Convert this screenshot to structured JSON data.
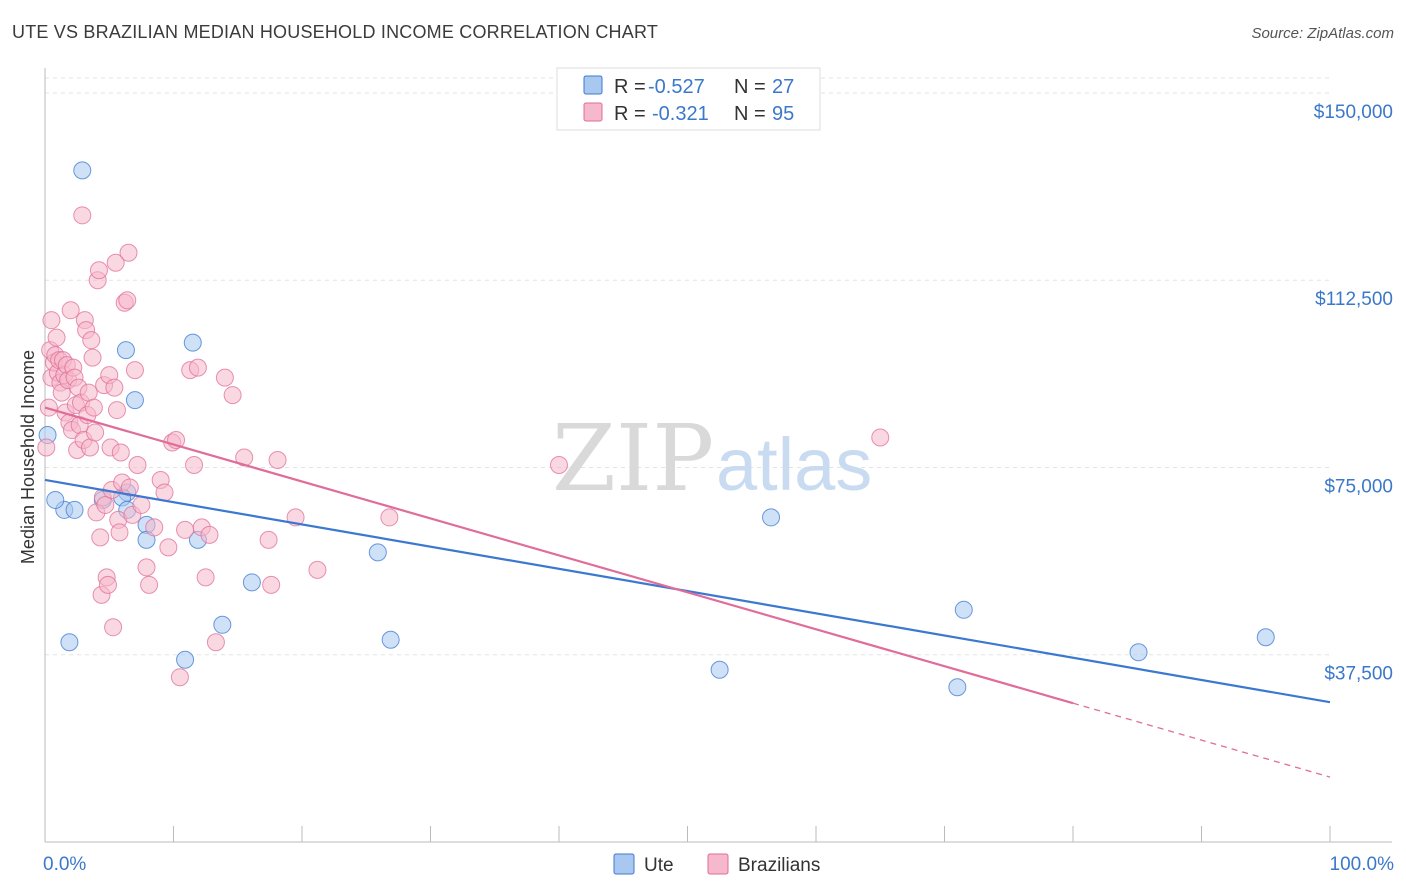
{
  "title": "UTE VS BRAZILIAN MEDIAN HOUSEHOLD INCOME CORRELATION CHART",
  "source": "Source: ZipAtlas.com",
  "watermark": {
    "zip": "ZIP",
    "atlas": "atlas"
  },
  "legend_top": [
    {
      "r_label": "R = ",
      "r_value": "-0.527",
      "n_label": "N = ",
      "n_value": "27",
      "color": "#a8c8f0"
    },
    {
      "r_label": "R = ",
      "r_value": "-0.321",
      "n_label": "N = ",
      "n_value": "95",
      "color": "#f6b8cb"
    }
  ],
  "legend_bottom": [
    {
      "label": "Ute",
      "color": "#a8c8f0"
    },
    {
      "label": "Brazilians",
      "color": "#f6b8cb"
    }
  ],
  "chart_data": {
    "type": "scatter",
    "title": "UTE VS BRAZILIAN MEDIAN HOUSEHOLD INCOME CORRELATION CHART",
    "xlabel": "",
    "ylabel": "Median Household Income",
    "xlim": [
      0,
      100
    ],
    "ylim": [
      0,
      153000
    ],
    "x_tick_labels": [
      "0.0%",
      "100.0%"
    ],
    "y_ticks": [
      {
        "value": 37500,
        "label": "$37,500"
      },
      {
        "value": 75000,
        "label": "$75,000"
      },
      {
        "value": 112500,
        "label": "$112,500"
      },
      {
        "value": 150000,
        "label": "$150,000"
      }
    ],
    "series": [
      {
        "name": "Ute",
        "color": "#3b78d0",
        "fill": "#a8c8f0",
        "r": -0.527,
        "n": 27,
        "trend": {
          "x0": 0,
          "y0": 72500,
          "x1": 100,
          "y1": 28000,
          "solid_until": 100
        },
        "points": [
          [
            0.2,
            81500
          ],
          [
            1.5,
            66500
          ],
          [
            2.3,
            66500
          ],
          [
            2.9,
            134500
          ],
          [
            1.9,
            40000
          ],
          [
            6.3,
            98500
          ],
          [
            6.4,
            70000
          ],
          [
            7.0,
            88500
          ],
          [
            6.0,
            69000
          ],
          [
            6.4,
            66500
          ],
          [
            7.9,
            63500
          ],
          [
            7.9,
            60500
          ],
          [
            11.5,
            100000
          ],
          [
            11.9,
            60500
          ],
          [
            10.9,
            36500
          ],
          [
            13.8,
            43500
          ],
          [
            16.1,
            52000
          ],
          [
            25.9,
            58000
          ],
          [
            26.9,
            40500
          ],
          [
            52.5,
            34500
          ],
          [
            56.5,
            65000
          ],
          [
            71.0,
            31000
          ],
          [
            71.5,
            46500
          ],
          [
            85.1,
            38000
          ],
          [
            95.0,
            41000
          ],
          [
            0.8,
            68500
          ],
          [
            4.5,
            68500
          ]
        ]
      },
      {
        "name": "Brazilians",
        "color": "#e06d99",
        "fill": "#f6b8cb",
        "r": -0.321,
        "n": 95,
        "trend": {
          "x0": 0,
          "y0": 87000,
          "x1": 100,
          "y1": 13000,
          "solid_until": 80
        },
        "points": [
          [
            0.1,
            79000
          ],
          [
            0.3,
            87000
          ],
          [
            0.4,
            98500
          ],
          [
            0.5,
            93000
          ],
          [
            0.5,
            104500
          ],
          [
            0.7,
            96000
          ],
          [
            0.8,
            97500
          ],
          [
            0.9,
            101000
          ],
          [
            1.0,
            94000
          ],
          [
            1.1,
            96500
          ],
          [
            1.2,
            92000
          ],
          [
            1.3,
            90000
          ],
          [
            1.4,
            96500
          ],
          [
            1.5,
            93500
          ],
          [
            1.6,
            86000
          ],
          [
            1.7,
            95500
          ],
          [
            1.8,
            92500
          ],
          [
            1.9,
            84000
          ],
          [
            2.0,
            106500
          ],
          [
            2.1,
            82500
          ],
          [
            2.2,
            95000
          ],
          [
            2.3,
            93000
          ],
          [
            2.4,
            87500
          ],
          [
            2.5,
            78500
          ],
          [
            2.6,
            91000
          ],
          [
            2.7,
            83500
          ],
          [
            2.8,
            88000
          ],
          [
            2.9,
            125500
          ],
          [
            3.0,
            80500
          ],
          [
            3.1,
            104500
          ],
          [
            3.2,
            102500
          ],
          [
            3.3,
            85500
          ],
          [
            3.4,
            90000
          ],
          [
            3.5,
            79000
          ],
          [
            3.6,
            100500
          ],
          [
            3.7,
            97000
          ],
          [
            3.8,
            87000
          ],
          [
            3.9,
            82000
          ],
          [
            4.0,
            66000
          ],
          [
            4.1,
            112500
          ],
          [
            4.2,
            114500
          ],
          [
            4.3,
            61000
          ],
          [
            4.4,
            49500
          ],
          [
            4.5,
            69000
          ],
          [
            4.6,
            91500
          ],
          [
            4.7,
            67500
          ],
          [
            4.8,
            53000
          ],
          [
            4.9,
            51500
          ],
          [
            5.0,
            93500
          ],
          [
            5.1,
            79000
          ],
          [
            5.2,
            70500
          ],
          [
            5.3,
            43000
          ],
          [
            5.4,
            91000
          ],
          [
            5.5,
            116000
          ],
          [
            5.6,
            86500
          ],
          [
            5.7,
            64500
          ],
          [
            5.8,
            62000
          ],
          [
            5.9,
            78000
          ],
          [
            6.0,
            72000
          ],
          [
            6.2,
            108000
          ],
          [
            6.4,
            108500
          ],
          [
            6.5,
            118000
          ],
          [
            6.6,
            71000
          ],
          [
            6.8,
            65500
          ],
          [
            7.0,
            94500
          ],
          [
            7.2,
            75500
          ],
          [
            7.5,
            67500
          ],
          [
            7.9,
            55000
          ],
          [
            8.1,
            51500
          ],
          [
            8.5,
            63000
          ],
          [
            9.0,
            72500
          ],
          [
            9.3,
            70000
          ],
          [
            9.6,
            59000
          ],
          [
            9.9,
            80000
          ],
          [
            10.2,
            80500
          ],
          [
            10.5,
            33000
          ],
          [
            10.9,
            62500
          ],
          [
            11.3,
            94500
          ],
          [
            11.6,
            75500
          ],
          [
            11.9,
            95000
          ],
          [
            12.2,
            63000
          ],
          [
            12.5,
            53000
          ],
          [
            12.8,
            61500
          ],
          [
            13.3,
            40000
          ],
          [
            14.0,
            93000
          ],
          [
            14.6,
            89500
          ],
          [
            15.5,
            77000
          ],
          [
            17.4,
            60500
          ],
          [
            17.6,
            51500
          ],
          [
            18.1,
            76500
          ],
          [
            19.5,
            65000
          ],
          [
            21.2,
            54500
          ],
          [
            26.8,
            65000
          ],
          [
            40.0,
            75500
          ],
          [
            65.0,
            81000
          ]
        ]
      }
    ]
  }
}
